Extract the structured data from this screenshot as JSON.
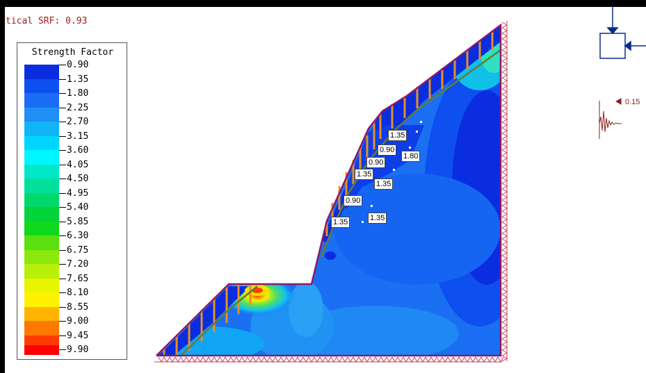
{
  "srf_label": "tical SRF: 0.93",
  "legend": {
    "title": "Strength Factor",
    "entries": [
      {
        "value": "0.90",
        "color": "#0a2de0"
      },
      {
        "value": "1.35",
        "color": "#0e4ff0"
      },
      {
        "value": "1.80",
        "color": "#1a6cf5"
      },
      {
        "value": "2.25",
        "color": "#1f8ff5"
      },
      {
        "value": "2.70",
        "color": "#10b4f7"
      },
      {
        "value": "3.15",
        "color": "#00d5ff"
      },
      {
        "value": "3.60",
        "color": "#00f5ff"
      },
      {
        "value": "4.05",
        "color": "#00e8c8"
      },
      {
        "value": "4.50",
        "color": "#00e09a"
      },
      {
        "value": "4.95",
        "color": "#00d96a"
      },
      {
        "value": "5.40",
        "color": "#00d43a"
      },
      {
        "value": "5.85",
        "color": "#10d81a"
      },
      {
        "value": "6.30",
        "color": "#5ae010"
      },
      {
        "value": "6.75",
        "color": "#8ce80a"
      },
      {
        "value": "7.20",
        "color": "#b8f00a"
      },
      {
        "value": "7.65",
        "color": "#e8f500"
      },
      {
        "value": "8.10",
        "color": "#fff200"
      },
      {
        "value": "8.55",
        "color": "#ffb400"
      },
      {
        "value": "9.00",
        "color": "#ff7800"
      },
      {
        "value": "9.45",
        "color": "#ff3c00"
      },
      {
        "value": "9.90",
        "color": "#ff0000"
      }
    ]
  },
  "bolt_labels": [
    {
      "text": "1.35"
    },
    {
      "text": "0.90"
    },
    {
      "text": "1.80"
    },
    {
      "text": "0.90"
    },
    {
      "text": "1.35"
    },
    {
      "text": "1.35"
    },
    {
      "text": "0.90"
    },
    {
      "text": "1.35"
    },
    {
      "text": "1.35"
    }
  ],
  "seismic_load_value": "0.15",
  "colors": {
    "boundary": "#8a1a6a",
    "support": "#c0405a",
    "bolts": "#e89020",
    "load_arrow": "#0a2a8a",
    "load_text": "#8b1a1a"
  },
  "icons": [
    "boundary-load-icon",
    "seismic-accelerogram-icon",
    "roller-support-icon",
    "pin-support-icon"
  ]
}
